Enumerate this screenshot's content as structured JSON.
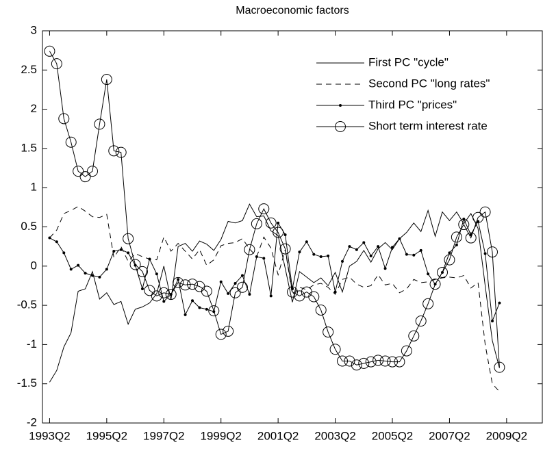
{
  "chart_data": {
    "type": "line",
    "title": "Macroeconomic factors",
    "x": [
      "1993Q2",
      "1993Q3",
      "1993Q4",
      "1994Q1",
      "1994Q2",
      "1994Q3",
      "1994Q4",
      "1995Q1",
      "1995Q2",
      "1995Q3",
      "1995Q4",
      "1996Q1",
      "1996Q2",
      "1996Q3",
      "1996Q4",
      "1997Q1",
      "1997Q2",
      "1997Q3",
      "1997Q4",
      "1998Q1",
      "1998Q2",
      "1998Q3",
      "1998Q4",
      "1999Q1",
      "1999Q2",
      "1999Q3",
      "1999Q4",
      "2000Q1",
      "2000Q2",
      "2000Q3",
      "2000Q4",
      "2001Q1",
      "2001Q2",
      "2001Q3",
      "2001Q4",
      "2002Q1",
      "2002Q2",
      "2002Q3",
      "2002Q4",
      "2003Q1",
      "2003Q2",
      "2003Q3",
      "2003Q4",
      "2004Q1",
      "2004Q2",
      "2004Q3",
      "2004Q4",
      "2005Q1",
      "2005Q2",
      "2005Q3",
      "2005Q4",
      "2006Q1",
      "2006Q2",
      "2006Q3",
      "2006Q4",
      "2007Q1",
      "2007Q2",
      "2007Q3",
      "2007Q4",
      "2008Q1",
      "2008Q2",
      "2008Q3",
      "2008Q4",
      "2009Q1"
    ],
    "series": [
      {
        "name": "First PC \"cycle\"",
        "color": "#000000",
        "style": "solid",
        "marker": "none",
        "values": [
          -1.48,
          -1.33,
          -1.03,
          -0.85,
          -0.32,
          -0.29,
          -0.07,
          -0.42,
          -0.34,
          -0.49,
          -0.45,
          -0.74,
          -0.55,
          -0.52,
          -0.47,
          -0.35,
          0.0,
          -0.43,
          0.25,
          0.29,
          0.19,
          0.32,
          0.28,
          0.2,
          0.34,
          0.57,
          0.55,
          0.58,
          0.79,
          0.63,
          0.64,
          0.45,
          0.39,
          -0.03,
          -0.46,
          -0.07,
          -0.14,
          -0.21,
          -0.15,
          -0.25,
          -0.08,
          -0.33,
          0.0,
          0.06,
          0.2,
          0.05,
          0.22,
          0.3,
          0.21,
          0.35,
          0.43,
          0.55,
          0.44,
          0.71,
          0.38,
          0.69,
          0.58,
          0.69,
          0.54,
          0.67,
          0.48,
          -0.25,
          -0.95,
          -1.3
        ]
      },
      {
        "name": "Second PC \"long rates\"",
        "color": "#000000",
        "style": "dashed",
        "marker": "none",
        "values": [
          0.36,
          0.46,
          0.67,
          0.71,
          0.76,
          0.7,
          0.63,
          0.62,
          0.66,
          0.11,
          0.25,
          0.06,
          0.16,
          0.12,
          0.09,
          0.08,
          0.37,
          0.19,
          0.29,
          0.19,
          0.09,
          0.21,
          0.01,
          0.08,
          0.26,
          0.29,
          0.3,
          0.35,
          0.22,
          0.12,
          0.37,
          0.23,
          -0.11,
          0.21,
          -0.36,
          -0.27,
          -0.3,
          -0.24,
          -0.22,
          -0.27,
          -0.36,
          -0.17,
          -0.14,
          -0.23,
          -0.27,
          -0.25,
          -0.11,
          -0.24,
          -0.22,
          -0.34,
          -0.29,
          -0.17,
          -0.21,
          -0.2,
          -0.17,
          -0.15,
          -0.14,
          -0.15,
          -0.12,
          -0.28,
          -0.21,
          -1.0,
          -1.5,
          -1.6
        ]
      },
      {
        "name": "Third PC \"prices\"",
        "color": "#000000",
        "style": "solid",
        "marker": "dot",
        "values": [
          0.36,
          0.31,
          0.17,
          -0.04,
          0.01,
          -0.09,
          -0.12,
          -0.14,
          -0.04,
          0.19,
          0.21,
          0.17,
          0.01,
          -0.29,
          0.09,
          -0.1,
          -0.45,
          -0.36,
          -0.17,
          -0.62,
          -0.44,
          -0.53,
          -0.55,
          -0.58,
          -0.2,
          -0.35,
          -0.22,
          -0.12,
          -0.36,
          0.12,
          0.1,
          -0.38,
          0.55,
          0.4,
          -0.29,
          0.18,
          0.31,
          0.15,
          0.12,
          0.13,
          -0.33,
          0.06,
          0.25,
          0.21,
          0.3,
          0.13,
          0.25,
          -0.03,
          0.24,
          0.35,
          0.15,
          0.14,
          0.2,
          -0.1,
          -0.23,
          -0.08,
          0.17,
          0.27,
          0.6,
          0.4,
          0.57,
          0.16,
          -0.7,
          -0.47
        ]
      },
      {
        "name": "Short term interest rate",
        "color": "#000000",
        "style": "solid",
        "marker": "circle",
        "values": [
          2.74,
          2.58,
          1.88,
          1.58,
          1.21,
          1.14,
          1.21,
          1.81,
          2.38,
          1.47,
          1.45,
          0.35,
          0.02,
          -0.07,
          -0.31,
          -0.38,
          -0.34,
          -0.36,
          -0.21,
          -0.24,
          -0.23,
          -0.26,
          -0.32,
          -0.57,
          -0.87,
          -0.83,
          -0.34,
          -0.27,
          0.21,
          0.54,
          0.73,
          0.55,
          0.43,
          0.22,
          -0.33,
          -0.38,
          -0.33,
          -0.39,
          -0.56,
          -0.84,
          -1.06,
          -1.21,
          -1.21,
          -1.26,
          -1.24,
          -1.22,
          -1.2,
          -1.21,
          -1.22,
          -1.22,
          -1.08,
          -0.89,
          -0.7,
          -0.48,
          -0.23,
          -0.08,
          0.08,
          0.37,
          0.53,
          0.36,
          0.62,
          0.69,
          0.18,
          -1.29
        ]
      }
    ],
    "xlim": [
      "1993Q1",
      "2010Q3"
    ],
    "xticks": [
      "1993Q2",
      "1995Q2",
      "1997Q2",
      "1999Q2",
      "2001Q2",
      "2003Q2",
      "2005Q2",
      "2007Q2",
      "2009Q2"
    ],
    "ylim": [
      -2,
      3
    ],
    "yticks": [
      -2,
      -1.5,
      -1,
      -0.5,
      0,
      0.5,
      1,
      1.5,
      2,
      2.5,
      3
    ],
    "grid": false,
    "legend": "northeast"
  }
}
